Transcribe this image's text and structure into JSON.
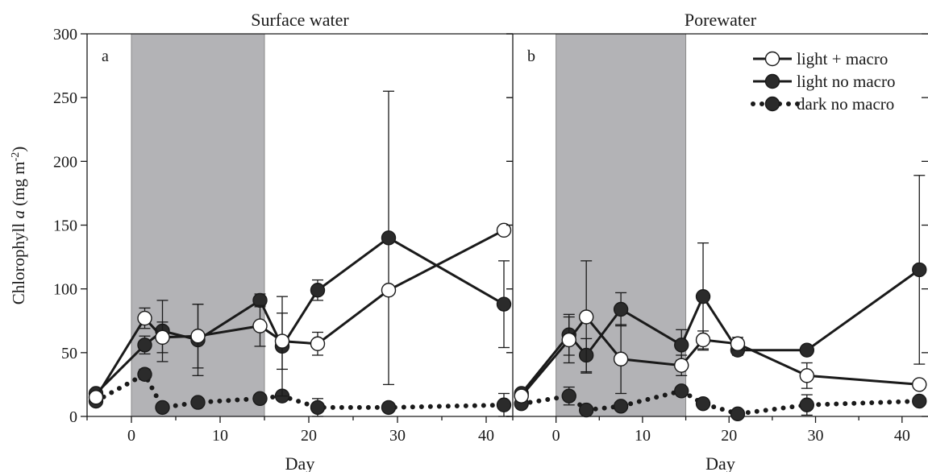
{
  "colors": {
    "shade": "#b3b3b6",
    "shade_edge": "#8a8a8a",
    "line": "#1a1a1a",
    "filled_marker": "#2b2b2b",
    "open_marker": "#ffffff"
  },
  "chart_data": {
    "type": "line",
    "ylabel": "Chlorophyll a (mg m-2)",
    "ylabel_parts": {
      "pre": "Chlorophyll ",
      "italic": "a",
      "post": " (mg m",
      "sup": "-2",
      "close": ")"
    },
    "ylim": [
      0,
      300
    ],
    "yticks": [
      "0",
      "50",
      "100",
      "150",
      "200",
      "250",
      "300"
    ],
    "xlim": [
      -5,
      43
    ],
    "xticks": [
      "0",
      "10",
      "20",
      "30",
      "40"
    ],
    "grid": false,
    "legend": {
      "position": "top-right",
      "entries": [
        {
          "label": "light + macro",
          "marker": "open",
          "line": "solid"
        },
        {
          "label": "light no macro",
          "marker": "filled",
          "line": "solid"
        },
        {
          "label": "dark no macro",
          "marker": "filled",
          "line": "dotted"
        }
      ]
    },
    "panels": [
      {
        "title": "Surface water",
        "letter": "a",
        "xlabel": "Day",
        "shaded_x": [
          0,
          15
        ],
        "series": [
          {
            "name": "light + macro",
            "marker": "open",
            "line": "solid",
            "points": [
              {
                "x": -4,
                "y": 15,
                "err": 0
              },
              {
                "x": 1.5,
                "y": 77,
                "err": 8
              },
              {
                "x": 3.5,
                "y": 62,
                "err": 12
              },
              {
                "x": 7.5,
                "y": 63,
                "err": 25
              },
              {
                "x": 14.5,
                "y": 71,
                "err": 16
              },
              {
                "x": 17,
                "y": 59,
                "err": 22
              },
              {
                "x": 21,
                "y": 57,
                "err": 9
              },
              {
                "x": 29,
                "y": 99,
                "err": 0
              },
              {
                "x": 42,
                "y": 146,
                "err": 0
              }
            ]
          },
          {
            "name": "light no macro",
            "marker": "filled",
            "line": "solid",
            "points": [
              {
                "x": -4,
                "y": 18,
                "err": 0
              },
              {
                "x": 1.5,
                "y": 56,
                "err": 7
              },
              {
                "x": 3.5,
                "y": 67,
                "err": 24
              },
              {
                "x": 7.5,
                "y": 60,
                "err": 28
              },
              {
                "x": 14.5,
                "y": 91,
                "err": 5
              },
              {
                "x": 17,
                "y": 55,
                "err": 39
              },
              {
                "x": 21,
                "y": 99,
                "err": 8
              },
              {
                "x": 29,
                "y": 140,
                "err": 115
              },
              {
                "x": 42,
                "y": 88,
                "err": 34
              }
            ]
          },
          {
            "name": "dark no macro",
            "marker": "filled",
            "line": "dotted",
            "points": [
              {
                "x": -4,
                "y": 12,
                "err": 0
              },
              {
                "x": 1.5,
                "y": 33,
                "err": 4
              },
              {
                "x": 3.5,
                "y": 7,
                "err": 3
              },
              {
                "x": 7.5,
                "y": 11,
                "err": 3
              },
              {
                "x": 14.5,
                "y": 14,
                "err": 3
              },
              {
                "x": 17,
                "y": 16,
                "err": 3
              },
              {
                "x": 21,
                "y": 7,
                "err": 7
              },
              {
                "x": 29,
                "y": 7,
                "err": 3
              },
              {
                "x": 42,
                "y": 9,
                "err": 9
              }
            ]
          }
        ]
      },
      {
        "title": "Porewater",
        "letter": "b",
        "xlabel": "Day",
        "shaded_x": [
          0,
          15
        ],
        "series": [
          {
            "name": "light + macro",
            "marker": "open",
            "line": "solid",
            "points": [
              {
                "x": -4,
                "y": 16,
                "err": 0
              },
              {
                "x": 1.5,
                "y": 60,
                "err": 18
              },
              {
                "x": 3.5,
                "y": 78,
                "err": 44
              },
              {
                "x": 7.5,
                "y": 45,
                "err": 27
              },
              {
                "x": 14.5,
                "y": 40,
                "err": 8
              },
              {
                "x": 17,
                "y": 60,
                "err": 7
              },
              {
                "x": 21,
                "y": 57,
                "err": 5
              },
              {
                "x": 29,
                "y": 32,
                "err": 10
              },
              {
                "x": 42,
                "y": 25,
                "err": 0
              }
            ]
          },
          {
            "name": "light no macro",
            "marker": "filled",
            "line": "solid",
            "points": [
              {
                "x": -4,
                "y": 18,
                "err": 0
              },
              {
                "x": 1.5,
                "y": 64,
                "err": 16
              },
              {
                "x": 3.5,
                "y": 48,
                "err": 13
              },
              {
                "x": 7.5,
                "y": 84,
                "err": 13
              },
              {
                "x": 14.5,
                "y": 56,
                "err": 12
              },
              {
                "x": 17,
                "y": 94,
                "err": 42
              },
              {
                "x": 21,
                "y": 52,
                "err": 4
              },
              {
                "x": 29,
                "y": 52,
                "err": 0
              },
              {
                "x": 42,
                "y": 115,
                "err": 74
              }
            ]
          },
          {
            "name": "dark no macro",
            "marker": "filled",
            "line": "dotted",
            "points": [
              {
                "x": -4,
                "y": 10,
                "err": 0
              },
              {
                "x": 1.5,
                "y": 16,
                "err": 7
              },
              {
                "x": 3.5,
                "y": 5,
                "err": 2
              },
              {
                "x": 7.5,
                "y": 8,
                "err": 3
              },
              {
                "x": 14.5,
                "y": 20,
                "err": 3
              },
              {
                "x": 17,
                "y": 10,
                "err": 3
              },
              {
                "x": 21,
                "y": 2,
                "err": 2
              },
              {
                "x": 29,
                "y": 9,
                "err": 8
              },
              {
                "x": 42,
                "y": 12,
                "err": 3
              }
            ]
          }
        ]
      }
    ]
  }
}
